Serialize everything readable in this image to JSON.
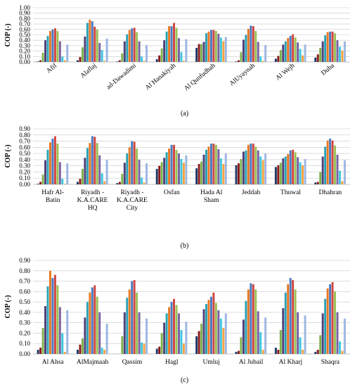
{
  "colors": [
    "#1f3a68",
    "#8b1a1a",
    "#7fb24c",
    "#4f3f7a",
    "#2aa3b8",
    "#e87722",
    "#4a7ac0",
    "#d0463f",
    "#9bc256",
    "#7a62a3",
    "#3fc7e0",
    "#f8a23f",
    "#9cb6e2"
  ],
  "chart_data": [
    {
      "type": "bar",
      "panel_label": "(a)",
      "ylabel": "COP (-)",
      "ylim": [
        0,
        1.0
      ],
      "yticks": [
        "0.00",
        "0.10",
        "0.20",
        "0.30",
        "0.40",
        "0.50",
        "0.60",
        "0.70",
        "0.80",
        "0.90",
        "1.00"
      ],
      "grid": true,
      "categories": [
        "Afif",
        "Alaflaj",
        "ad-Dawadimi",
        "Al Hanakiyah",
        "Al Qunfudhah",
        "AlUyaynah",
        "Al Wejh",
        "Duba"
      ],
      "series_values_by_category": [
        [
          0.01,
          0.03,
          0.17,
          0.4,
          0.48,
          0.57,
          0.6,
          0.62,
          0.57,
          0.38,
          0.1,
          0.03,
          0.32
        ],
        [
          0.03,
          0.09,
          0.27,
          0.47,
          0.72,
          0.78,
          0.75,
          0.65,
          0.6,
          0.35,
          0.22,
          0.02,
          0.43
        ],
        [
          0.01,
          0.03,
          0.16,
          0.38,
          0.51,
          0.59,
          0.62,
          0.63,
          0.55,
          0.38,
          0.1,
          0.02,
          0.31
        ],
        [
          0.05,
          0.12,
          0.25,
          0.4,
          0.56,
          0.66,
          0.66,
          0.72,
          0.63,
          0.44,
          0.18,
          0.02,
          0.42
        ],
        [
          0.26,
          0.33,
          0.33,
          0.37,
          0.53,
          0.56,
          0.59,
          0.59,
          0.57,
          0.52,
          0.45,
          0.38,
          0.46
        ],
        [
          0.01,
          0.03,
          0.18,
          0.41,
          0.5,
          0.61,
          0.67,
          0.66,
          0.57,
          0.37,
          0.1,
          0.02,
          0.31
        ],
        [
          0.06,
          0.11,
          0.22,
          0.32,
          0.38,
          0.44,
          0.48,
          0.51,
          0.45,
          0.36,
          0.24,
          0.12,
          0.32
        ],
        [
          0.08,
          0.14,
          0.26,
          0.38,
          0.49,
          0.55,
          0.56,
          0.56,
          0.53,
          0.4,
          0.28,
          0.21,
          0.38
        ]
      ]
    },
    {
      "type": "bar",
      "panel_label": "(b)",
      "ylabel": "COP (-)",
      "ylim": [
        0,
        0.9
      ],
      "yticks": [
        "0.00",
        "0.10",
        "0.20",
        "0.30",
        "0.40",
        "0.50",
        "0.60",
        "0.70",
        "0.80",
        "0.90"
      ],
      "grid": true,
      "categories": [
        "Hafr Al-\nBatin",
        "Riyadh -\nK.A.CARE\nHQ",
        "Riyadh -\nK.A.CARE\nCity",
        "Osfan",
        "Hada Al\nSham",
        "Jeddah",
        "Thuwal",
        "Dhahran"
      ],
      "series_values_by_category": [
        [
          0.01,
          0.04,
          0.16,
          0.39,
          0.56,
          0.68,
          0.74,
          0.78,
          0.66,
          0.36,
          0.09,
          0.01,
          0.34
        ],
        [
          0.04,
          0.09,
          0.25,
          0.43,
          0.59,
          0.67,
          0.78,
          0.77,
          0.67,
          0.47,
          0.18,
          0.05,
          0.4
        ],
        [
          0.02,
          0.04,
          0.17,
          0.35,
          0.5,
          0.6,
          0.7,
          0.69,
          0.58,
          0.4,
          0.11,
          0.03,
          0.34
        ],
        [
          0.25,
          0.3,
          0.36,
          0.43,
          0.52,
          0.58,
          0.64,
          0.64,
          0.56,
          0.5,
          0.41,
          0.35,
          0.47
        ],
        [
          0.26,
          0.33,
          0.37,
          0.48,
          0.56,
          0.61,
          0.66,
          0.66,
          0.64,
          0.57,
          0.42,
          0.33,
          0.5
        ],
        [
          0.31,
          0.34,
          0.41,
          0.53,
          0.55,
          0.64,
          0.66,
          0.66,
          0.61,
          0.55,
          0.45,
          0.39,
          0.5
        ],
        [
          0.28,
          0.31,
          0.35,
          0.42,
          0.45,
          0.49,
          0.55,
          0.56,
          0.52,
          0.44,
          0.36,
          0.31,
          0.41
        ],
        [
          0.03,
          0.04,
          0.2,
          0.45,
          0.61,
          0.71,
          0.74,
          0.71,
          0.63,
          0.48,
          0.22,
          0.05,
          0.39
        ]
      ]
    },
    {
      "type": "bar",
      "panel_label": "(c)",
      "ylabel": "COP (-)",
      "ylim": [
        0,
        0.9
      ],
      "yticks": [
        "0.00",
        "0.10",
        "0.20",
        "0.30",
        "0.40",
        "0.50",
        "0.60",
        "0.70",
        "0.80",
        "0.90"
      ],
      "grid": true,
      "categories": [
        "Al Ahsa",
        "AlMajmaah",
        "Qassim",
        "Hagl",
        "Umluj",
        "Al Jubail",
        "Al Kharj",
        "Shaqra"
      ],
      "series_values_by_category": [
        [
          0.04,
          0.06,
          0.25,
          0.46,
          0.65,
          0.8,
          0.73,
          0.76,
          0.66,
          0.45,
          0.2,
          0.02,
          0.42
        ],
        [
          0.04,
          0.09,
          0.15,
          0.35,
          0.5,
          0.59,
          0.64,
          0.66,
          0.55,
          0.4,
          0.06,
          0.04,
          0.29
        ],
        [
          0.0,
          0.0,
          0.17,
          0.4,
          0.54,
          0.62,
          0.7,
          0.71,
          0.59,
          0.4,
          0.11,
          0.1,
          0.34
        ],
        [
          0.05,
          0.07,
          0.2,
          0.3,
          0.39,
          0.45,
          0.5,
          0.53,
          0.47,
          0.39,
          0.23,
          0.1,
          0.31
        ],
        [
          0.17,
          0.22,
          0.29,
          0.43,
          0.48,
          0.52,
          0.55,
          0.59,
          0.49,
          0.42,
          0.34,
          0.25,
          0.39
        ],
        [
          0.02,
          0.03,
          0.16,
          0.33,
          0.51,
          0.62,
          0.68,
          0.67,
          0.62,
          0.41,
          0.21,
          0.04,
          0.35
        ],
        [
          0.06,
          0.04,
          0.23,
          0.44,
          0.59,
          0.67,
          0.73,
          0.71,
          0.62,
          0.4,
          0.16,
          0.04,
          0.37
        ],
        [
          0.02,
          0.04,
          0.18,
          0.39,
          0.53,
          0.63,
          0.67,
          0.69,
          0.6,
          0.4,
          0.12,
          0.03,
          0.34
        ]
      ]
    }
  ]
}
